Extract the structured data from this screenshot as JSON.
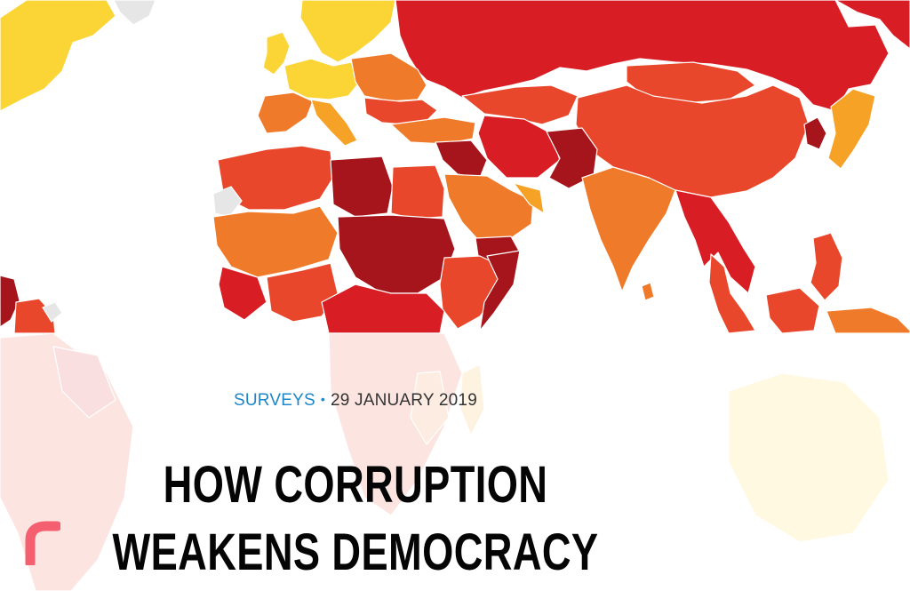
{
  "article": {
    "category": "SURVEYS",
    "separator": "•",
    "date": "29 JANUARY 2019",
    "title": "HOW CORRUPTION WEAKENS DEMOCRACY"
  },
  "icons": {
    "brand_mark": "brand-curve-icon"
  },
  "colors": {
    "accent_link": "#1f86c8",
    "map_darkest": "#a5151b",
    "map_dark_red": "#d81e24",
    "map_red_orange": "#e8472b",
    "map_orange": "#ef7a2a",
    "map_light_orange": "#f6a227",
    "map_yellow": "#fbd435",
    "map_grey": "#e6e6e6",
    "brand_pink": "#f46070"
  }
}
